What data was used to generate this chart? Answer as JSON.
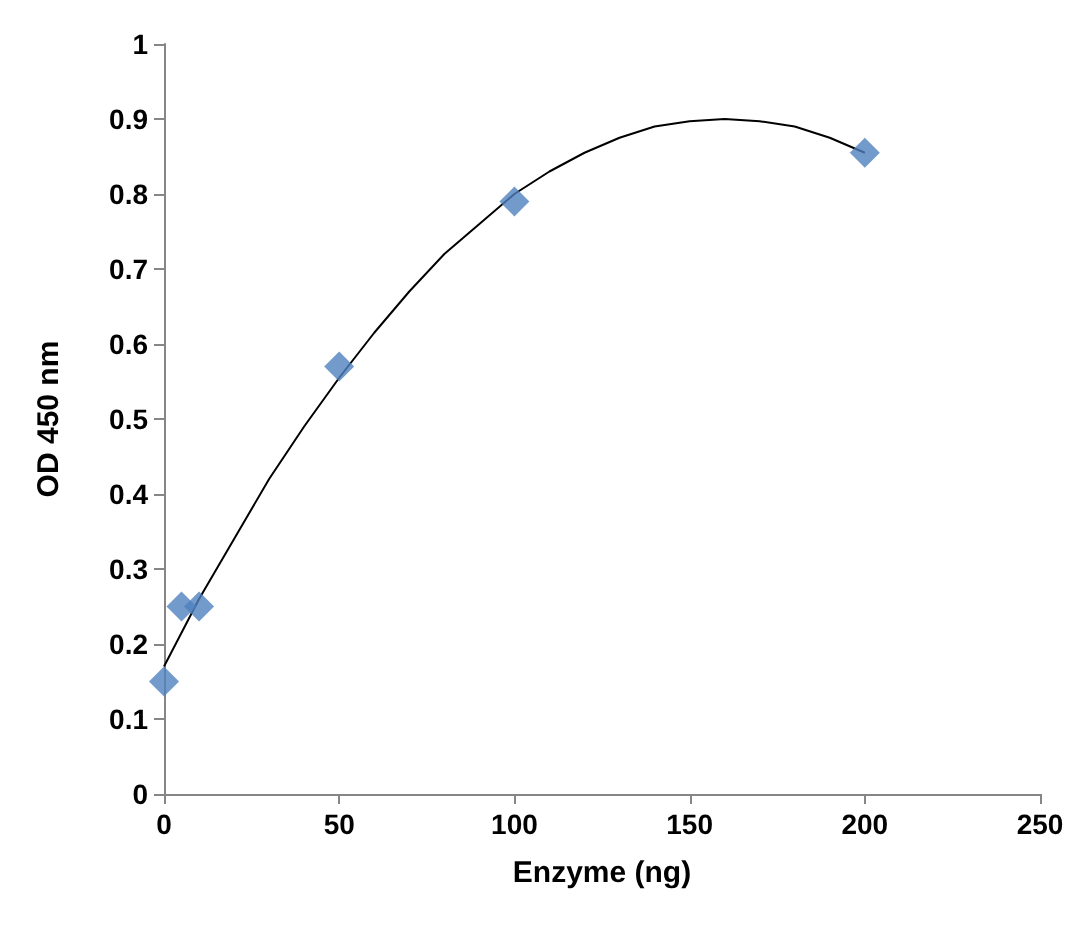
{
  "chart_data": {
    "type": "scatter",
    "xlabel": "Enzyme (ng)",
    "ylabel": "OD 450 nm",
    "marker": "diamond",
    "grid": false,
    "xlim": [
      0,
      250
    ],
    "xticks": [
      0,
      50,
      100,
      150,
      200,
      250
    ],
    "ylim": [
      0,
      1
    ],
    "yticks": [
      0,
      0.1,
      0.2,
      0.3,
      0.4,
      0.5,
      0.6,
      0.7,
      0.8,
      0.9,
      1
    ],
    "series": [
      {
        "color": "#4f81bd",
        "x": [
          0,
          5,
          10,
          50,
          100,
          200
        ],
        "values": [
          0.15,
          0.25,
          0.25,
          0.57,
          0.79,
          0.855
        ]
      },
      {
        "type": "line",
        "color": "#000000",
        "marker": "none",
        "x": [
          0,
          10,
          20,
          30,
          40,
          50,
          60,
          70,
          80,
          90,
          100,
          110,
          120,
          130,
          140,
          150,
          160,
          170,
          180,
          190,
          200
        ],
        "values": [
          0.17,
          0.26,
          0.34,
          0.42,
          0.49,
          0.555,
          0.615,
          0.67,
          0.72,
          0.76,
          0.8,
          0.83,
          0.855,
          0.875,
          0.89,
          0.897,
          0.9,
          0.897,
          0.89,
          0.875,
          0.855
        ]
      }
    ]
  }
}
